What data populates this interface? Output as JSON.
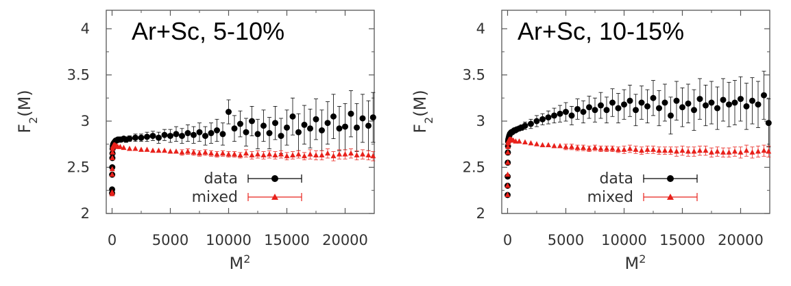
{
  "chart_data": [
    {
      "type": "scatter",
      "title": "Ar+Sc, 5-10%",
      "xlabel": "M",
      "xlabel_sup": "2",
      "ylabel": "F",
      "ylabel_sub": "2",
      "ylabel_suffix": "(M)",
      "xlim": [
        -500,
        22500
      ],
      "ylim": [
        2,
        4.2
      ],
      "xticks": [
        "0",
        "5000",
        "10000",
        "15000",
        "20000"
      ],
      "yticks": [
        "2",
        "2.5",
        "3",
        "3.5",
        "4"
      ],
      "grid": false,
      "legend_position": "lower-center",
      "series": [
        {
          "name": "data",
          "color": "#000000",
          "marker": "circle",
          "x": [
            1,
            4,
            9,
            16,
            25,
            36,
            49,
            64,
            100,
            144,
            196,
            256,
            324,
            400,
            484,
            576,
            676,
            784,
            1000,
            1200,
            1500,
            2000,
            2500,
            3000,
            3500,
            4000,
            4500,
            5000,
            5500,
            6000,
            6500,
            7000,
            7500,
            8000,
            8500,
            9000,
            9500,
            10000,
            10500,
            11000,
            11500,
            12000,
            12500,
            13000,
            13500,
            14000,
            14500,
            15000,
            15500,
            16000,
            16500,
            17000,
            17500,
            18000,
            18500,
            19000,
            19500,
            20000,
            20500,
            21000,
            21500,
            22000,
            22400
          ],
          "y": [
            2.22,
            2.26,
            2.42,
            2.5,
            2.6,
            2.65,
            2.7,
            2.73,
            2.75,
            2.76,
            2.77,
            2.78,
            2.79,
            2.79,
            2.8,
            2.8,
            2.8,
            2.8,
            2.81,
            2.8,
            2.81,
            2.82,
            2.82,
            2.83,
            2.84,
            2.82,
            2.85,
            2.84,
            2.86,
            2.84,
            2.87,
            2.85,
            2.88,
            2.84,
            2.87,
            2.9,
            2.86,
            3.1,
            2.92,
            2.97,
            2.88,
            3.0,
            2.86,
            2.95,
            2.87,
            2.98,
            2.84,
            2.93,
            3.05,
            2.88,
            2.96,
            2.92,
            3.02,
            2.9,
            2.98,
            3.05,
            2.92,
            2.94,
            3.08,
            2.93,
            3.03,
            2.95,
            3.04
          ],
          "yerr": [
            0.02,
            0.02,
            0.02,
            0.02,
            0.02,
            0.02,
            0.02,
            0.02,
            0.02,
            0.02,
            0.02,
            0.02,
            0.02,
            0.02,
            0.02,
            0.02,
            0.02,
            0.02,
            0.02,
            0.03,
            0.03,
            0.04,
            0.04,
            0.05,
            0.05,
            0.06,
            0.06,
            0.07,
            0.08,
            0.08,
            0.09,
            0.09,
            0.1,
            0.1,
            0.11,
            0.12,
            0.12,
            0.13,
            0.14,
            0.14,
            0.15,
            0.16,
            0.16,
            0.17,
            0.17,
            0.18,
            0.19,
            0.19,
            0.2,
            0.2,
            0.21,
            0.21,
            0.22,
            0.22,
            0.23,
            0.24,
            0.24,
            0.25,
            0.25,
            0.26,
            0.26,
            0.27,
            0.27
          ]
        },
        {
          "name": "mixed",
          "color": "#e8211b",
          "marker": "triangle",
          "x": [
            1,
            4,
            9,
            16,
            25,
            36,
            49,
            64,
            100,
            144,
            196,
            256,
            324,
            400,
            500,
            700,
            1000,
            1500,
            2000,
            2500,
            3000,
            3500,
            4000,
            4500,
            5000,
            5500,
            6000,
            6500,
            7000,
            7500,
            8000,
            8500,
            9000,
            9500,
            10000,
            10500,
            11000,
            11500,
            12000,
            12500,
            13000,
            13500,
            14000,
            14500,
            15000,
            15500,
            16000,
            16500,
            17000,
            17500,
            18000,
            18500,
            19000,
            19500,
            20000,
            20500,
            21000,
            21500,
            22000,
            22400
          ],
          "y": [
            2.21,
            2.23,
            2.42,
            2.48,
            2.6,
            2.66,
            2.7,
            2.72,
            2.73,
            2.74,
            2.74,
            2.74,
            2.73,
            2.73,
            2.72,
            2.72,
            2.71,
            2.7,
            2.7,
            2.69,
            2.69,
            2.68,
            2.68,
            2.68,
            2.67,
            2.67,
            2.66,
            2.67,
            2.66,
            2.65,
            2.66,
            2.65,
            2.64,
            2.65,
            2.64,
            2.64,
            2.63,
            2.65,
            2.63,
            2.64,
            2.63,
            2.64,
            2.63,
            2.64,
            2.62,
            2.63,
            2.64,
            2.62,
            2.64,
            2.63,
            2.63,
            2.65,
            2.62,
            2.64,
            2.64,
            2.65,
            2.63,
            2.64,
            2.63,
            2.62
          ],
          "yerr": [
            0.02,
            0.02,
            0.02,
            0.02,
            0.02,
            0.02,
            0.02,
            0.02,
            0.02,
            0.02,
            0.02,
            0.02,
            0.02,
            0.02,
            0.02,
            0.02,
            0.02,
            0.02,
            0.02,
            0.02,
            0.02,
            0.02,
            0.02,
            0.02,
            0.02,
            0.02,
            0.03,
            0.03,
            0.03,
            0.03,
            0.03,
            0.03,
            0.03,
            0.03,
            0.03,
            0.03,
            0.03,
            0.04,
            0.04,
            0.04,
            0.04,
            0.04,
            0.04,
            0.04,
            0.04,
            0.04,
            0.04,
            0.04,
            0.05,
            0.05,
            0.05,
            0.05,
            0.05,
            0.05,
            0.05,
            0.05,
            0.05,
            0.05,
            0.05,
            0.05
          ]
        }
      ]
    },
    {
      "type": "scatter",
      "title": "Ar+Sc, 10-15%",
      "xlabel": "M",
      "xlabel_sup": "2",
      "ylabel": "F",
      "ylabel_sub": "2",
      "ylabel_suffix": "(M)",
      "xlim": [
        -500,
        22500
      ],
      "ylim": [
        2,
        4.2
      ],
      "xticks": [
        "0",
        "5000",
        "10000",
        "15000",
        "20000"
      ],
      "yticks": [
        "2",
        "2.5",
        "3",
        "3.5",
        "4"
      ],
      "grid": false,
      "legend_position": "lower-center",
      "series": [
        {
          "name": "data",
          "color": "#000000",
          "marker": "circle",
          "x": [
            1,
            4,
            9,
            16,
            25,
            36,
            49,
            64,
            100,
            144,
            196,
            256,
            324,
            400,
            484,
            576,
            676,
            784,
            1000,
            1200,
            1500,
            2000,
            2500,
            3000,
            3500,
            4000,
            4500,
            5000,
            5500,
            6000,
            6500,
            7000,
            7500,
            8000,
            8500,
            9000,
            9500,
            10000,
            10500,
            11000,
            11500,
            12000,
            12500,
            13000,
            13500,
            14000,
            14500,
            15000,
            15500,
            16000,
            16500,
            17000,
            17500,
            18000,
            18500,
            19000,
            19500,
            20000,
            20500,
            21000,
            21500,
            22000,
            22400
          ],
          "y": [
            2.2,
            2.3,
            2.4,
            2.55,
            2.66,
            2.73,
            2.78,
            2.8,
            2.82,
            2.84,
            2.86,
            2.87,
            2.88,
            2.88,
            2.89,
            2.9,
            2.9,
            2.91,
            2.92,
            2.93,
            2.95,
            2.97,
            3.0,
            3.02,
            3.04,
            3.06,
            3.08,
            3.1,
            3.06,
            3.13,
            3.1,
            3.15,
            3.12,
            3.17,
            3.12,
            3.2,
            3.14,
            3.18,
            3.22,
            3.12,
            3.2,
            3.16,
            3.25,
            3.14,
            3.2,
            3.06,
            3.22,
            3.15,
            3.19,
            3.12,
            3.24,
            3.17,
            3.2,
            3.14,
            3.23,
            3.18,
            3.2,
            3.24,
            3.16,
            3.22,
            3.18,
            3.28,
            2.98
          ],
          "yerr": [
            0.02,
            0.02,
            0.02,
            0.02,
            0.02,
            0.02,
            0.02,
            0.02,
            0.02,
            0.02,
            0.02,
            0.02,
            0.02,
            0.02,
            0.02,
            0.02,
            0.02,
            0.02,
            0.02,
            0.03,
            0.04,
            0.05,
            0.06,
            0.06,
            0.07,
            0.08,
            0.09,
            0.1,
            0.1,
            0.11,
            0.12,
            0.12,
            0.13,
            0.14,
            0.14,
            0.15,
            0.16,
            0.16,
            0.17,
            0.17,
            0.18,
            0.18,
            0.19,
            0.19,
            0.2,
            0.2,
            0.21,
            0.21,
            0.21,
            0.22,
            0.22,
            0.22,
            0.23,
            0.23,
            0.23,
            0.24,
            0.24,
            0.24,
            0.25,
            0.25,
            0.25,
            0.26,
            0.26
          ]
        },
        {
          "name": "mixed",
          "color": "#e8211b",
          "marker": "triangle",
          "x": [
            1,
            4,
            9,
            16,
            25,
            36,
            49,
            64,
            100,
            144,
            196,
            256,
            324,
            400,
            500,
            700,
            1000,
            1500,
            2000,
            2500,
            3000,
            3500,
            4000,
            4500,
            5000,
            5500,
            6000,
            6500,
            7000,
            7500,
            8000,
            8500,
            9000,
            9500,
            10000,
            10500,
            11000,
            11500,
            12000,
            12500,
            13000,
            13500,
            14000,
            14500,
            15000,
            15500,
            16000,
            16500,
            17000,
            17500,
            18000,
            18500,
            19000,
            19500,
            20000,
            20500,
            21000,
            21500,
            22000,
            22400
          ],
          "y": [
            2.2,
            2.3,
            2.42,
            2.55,
            2.66,
            2.72,
            2.76,
            2.78,
            2.79,
            2.8,
            2.8,
            2.8,
            2.8,
            2.79,
            2.79,
            2.78,
            2.78,
            2.77,
            2.76,
            2.75,
            2.74,
            2.74,
            2.73,
            2.73,
            2.72,
            2.72,
            2.71,
            2.71,
            2.7,
            2.71,
            2.7,
            2.7,
            2.7,
            2.69,
            2.69,
            2.7,
            2.69,
            2.68,
            2.69,
            2.69,
            2.68,
            2.68,
            2.68,
            2.67,
            2.68,
            2.67,
            2.67,
            2.68,
            2.68,
            2.66,
            2.67,
            2.66,
            2.66,
            2.67,
            2.66,
            2.68,
            2.66,
            2.67,
            2.68,
            2.67
          ],
          "yerr": [
            0.02,
            0.02,
            0.02,
            0.02,
            0.02,
            0.02,
            0.02,
            0.02,
            0.02,
            0.02,
            0.02,
            0.02,
            0.02,
            0.02,
            0.02,
            0.02,
            0.02,
            0.02,
            0.02,
            0.02,
            0.02,
            0.02,
            0.02,
            0.02,
            0.03,
            0.03,
            0.03,
            0.03,
            0.03,
            0.03,
            0.03,
            0.03,
            0.03,
            0.03,
            0.04,
            0.04,
            0.04,
            0.04,
            0.04,
            0.04,
            0.04,
            0.04,
            0.04,
            0.05,
            0.05,
            0.05,
            0.05,
            0.05,
            0.05,
            0.05,
            0.05,
            0.05,
            0.05,
            0.05,
            0.06,
            0.06,
            0.06,
            0.06,
            0.06,
            0.06
          ]
        }
      ]
    }
  ]
}
